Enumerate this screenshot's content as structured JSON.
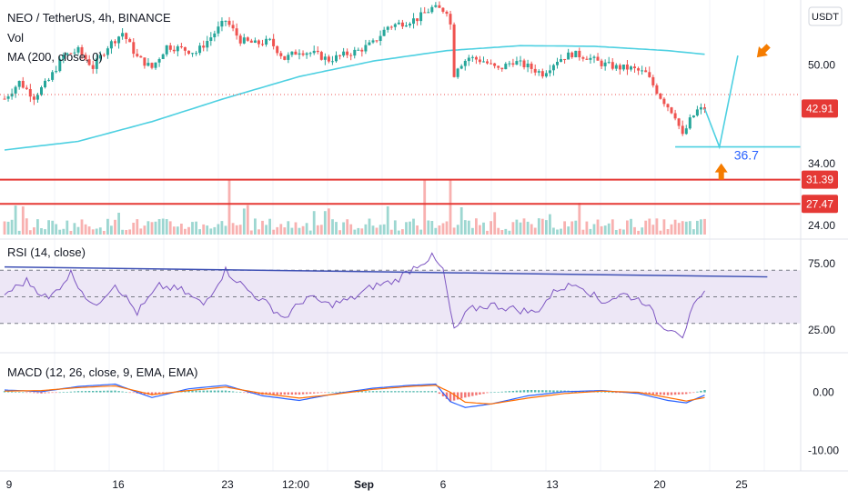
{
  "header": {
    "symbol_line": "NEO / TetherUS, 4h, BINANCE",
    "vol_label": "Vol",
    "ma_label": "MA (200, close, 0)",
    "currency": "USDT"
  },
  "colors": {
    "up": "#26a69a",
    "down": "#ef5350",
    "ma": "#4dd0e1",
    "level_line": "#e53935",
    "rsi_line": "#7e57c2",
    "rsi_band": "#ede7f6",
    "macd_line": "#2962ff",
    "signal_line": "#ff6d00",
    "annotation_arrow": "#f57c00",
    "annotation_text": "#2962ff",
    "grid": "#f0f3fa",
    "pane_border": "#e0e3eb"
  },
  "chart_data": [
    {
      "type": "candlestick",
      "title": "NEO / TetherUS, 4h, BINANCE",
      "y_axis_ticks": [
        50.0,
        42.91,
        34.0,
        31.39,
        27.47,
        24.0
      ],
      "ylim": [
        22.5,
        60.5
      ],
      "current_price_label": "42.91",
      "horizontal_levels": [
        "31.39",
        "27.47"
      ],
      "x_ticks": [
        "9",
        "16",
        "23",
        "12:00",
        "Sep",
        "6",
        "13",
        "20",
        "25"
      ],
      "price_path": [
        {
          "t": 0,
          "v": 44.5
        },
        {
          "t": 4,
          "v": 47.2
        },
        {
          "t": 8,
          "v": 44.8
        },
        {
          "t": 12,
          "v": 47.5
        },
        {
          "t": 16,
          "v": 51.5
        },
        {
          "t": 20,
          "v": 52.3
        },
        {
          "t": 24,
          "v": 49.6
        },
        {
          "t": 28,
          "v": 53.0
        },
        {
          "t": 32,
          "v": 55.2
        },
        {
          "t": 36,
          "v": 51.2
        },
        {
          "t": 40,
          "v": 49.5
        },
        {
          "t": 44,
          "v": 53.0
        },
        {
          "t": 48,
          "v": 52.6
        },
        {
          "t": 52,
          "v": 52.0
        },
        {
          "t": 56,
          "v": 54.5
        },
        {
          "t": 60,
          "v": 57.2
        },
        {
          "t": 64,
          "v": 54.0
        },
        {
          "t": 68,
          "v": 53.4
        },
        {
          "t": 72,
          "v": 53.8
        },
        {
          "t": 76,
          "v": 51.0
        },
        {
          "t": 80,
          "v": 52.3
        },
        {
          "t": 84,
          "v": 51.8
        },
        {
          "t": 88,
          "v": 50.8
        },
        {
          "t": 92,
          "v": 51.6
        },
        {
          "t": 96,
          "v": 52.3
        },
        {
          "t": 100,
          "v": 53.5
        },
        {
          "t": 104,
          "v": 56.2
        },
        {
          "t": 108,
          "v": 56.8
        },
        {
          "t": 112,
          "v": 57.5
        },
        {
          "t": 116,
          "v": 59.2
        },
        {
          "t": 120,
          "v": 58.8
        },
        {
          "t": 121,
          "v": 56.5
        },
        {
          "t": 122,
          "v": 48.5
        },
        {
          "t": 123,
          "v": 49.8
        },
        {
          "t": 126,
          "v": 51.2
        },
        {
          "t": 130,
          "v": 50.6
        },
        {
          "t": 134,
          "v": 49.2
        },
        {
          "t": 138,
          "v": 50.6
        },
        {
          "t": 142,
          "v": 49.7
        },
        {
          "t": 146,
          "v": 48.6
        },
        {
          "t": 150,
          "v": 50.8
        },
        {
          "t": 154,
          "v": 51.8
        },
        {
          "t": 158,
          "v": 51.3
        },
        {
          "t": 162,
          "v": 50.2
        },
        {
          "t": 166,
          "v": 49.6
        },
        {
          "t": 170,
          "v": 49.4
        },
        {
          "t": 174,
          "v": 48.6
        },
        {
          "t": 178,
          "v": 44.8
        },
        {
          "t": 182,
          "v": 41.8
        },
        {
          "t": 184,
          "v": 38.4
        },
        {
          "t": 186,
          "v": 41.0
        },
        {
          "t": 188,
          "v": 42.6
        },
        {
          "t": 190,
          "v": 42.91
        }
      ],
      "ma200_path": [
        {
          "t": 0,
          "v": 36.2
        },
        {
          "t": 20,
          "v": 37.6
        },
        {
          "t": 40,
          "v": 40.8
        },
        {
          "t": 60,
          "v": 44.6
        },
        {
          "t": 80,
          "v": 48.1
        },
        {
          "t": 100,
          "v": 50.6
        },
        {
          "t": 120,
          "v": 52.3
        },
        {
          "t": 140,
          "v": 53.1
        },
        {
          "t": 160,
          "v": 53.0
        },
        {
          "t": 180,
          "v": 52.3
        },
        {
          "t": 190,
          "v": 51.7
        }
      ],
      "volume_spikes": [
        {
          "t": 61,
          "label": "spike"
        },
        {
          "t": 114,
          "label": "spike"
        },
        {
          "t": 121,
          "label": "spike"
        }
      ],
      "projection": {
        "points": [
          {
            "t": 190,
            "v": 42.91
          },
          {
            "t": 194,
            "v": 36.7
          },
          {
            "t": 199,
            "v": 51.5
          }
        ],
        "support_level": 36.7,
        "support_label": "36.7"
      }
    },
    {
      "type": "line",
      "title": "RSI (14, close)",
      "y_axis_ticks": [
        75.0,
        25.0
      ],
      "ylim": [
        10,
        90
      ],
      "bands": [
        70,
        50,
        30
      ],
      "trendline": [
        {
          "t": 0,
          "v": 72.5
        },
        {
          "t": 207,
          "v": 65.0
        }
      ],
      "series": [
        {
          "name": "RSI",
          "points": [
            {
              "t": 0,
              "v": 52
            },
            {
              "t": 6,
              "v": 62
            },
            {
              "t": 12,
              "v": 48
            },
            {
              "t": 18,
              "v": 68
            },
            {
              "t": 24,
              "v": 42
            },
            {
              "t": 30,
              "v": 60
            },
            {
              "t": 36,
              "v": 38
            },
            {
              "t": 42,
              "v": 58
            },
            {
              "t": 48,
              "v": 55
            },
            {
              "t": 54,
              "v": 44
            },
            {
              "t": 60,
              "v": 70
            },
            {
              "t": 66,
              "v": 55
            },
            {
              "t": 72,
              "v": 43
            },
            {
              "t": 76,
              "v": 34
            },
            {
              "t": 82,
              "v": 50
            },
            {
              "t": 88,
              "v": 44
            },
            {
              "t": 94,
              "v": 48
            },
            {
              "t": 100,
              "v": 58
            },
            {
              "t": 106,
              "v": 62
            },
            {
              "t": 112,
              "v": 74
            },
            {
              "t": 116,
              "v": 80
            },
            {
              "t": 119,
              "v": 70
            },
            {
              "t": 122,
              "v": 24
            },
            {
              "t": 126,
              "v": 40
            },
            {
              "t": 132,
              "v": 44
            },
            {
              "t": 138,
              "v": 41
            },
            {
              "t": 144,
              "v": 38
            },
            {
              "t": 150,
              "v": 56
            },
            {
              "t": 156,
              "v": 60
            },
            {
              "t": 162,
              "v": 46
            },
            {
              "t": 168,
              "v": 52
            },
            {
              "t": 174,
              "v": 46
            },
            {
              "t": 178,
              "v": 28
            },
            {
              "t": 182,
              "v": 26
            },
            {
              "t": 184,
              "v": 21
            },
            {
              "t": 187,
              "v": 42
            },
            {
              "t": 190,
              "v": 52
            }
          ]
        }
      ]
    },
    {
      "type": "line",
      "title": "MACD (12, 26, close, 9, EMA, EMA)",
      "y_axis_ticks": [
        0.0,
        -10.0
      ],
      "ylim": [
        -13,
        6
      ],
      "series": [
        {
          "name": "MACD",
          "points": [
            {
              "t": 0,
              "v": 0.4
            },
            {
              "t": 10,
              "v": 0.1
            },
            {
              "t": 20,
              "v": 1.0
            },
            {
              "t": 30,
              "v": 1.4
            },
            {
              "t": 40,
              "v": -0.9
            },
            {
              "t": 50,
              "v": 0.6
            },
            {
              "t": 60,
              "v": 1.2
            },
            {
              "t": 70,
              "v": -0.6
            },
            {
              "t": 80,
              "v": -1.4
            },
            {
              "t": 90,
              "v": -0.2
            },
            {
              "t": 100,
              "v": 0.7
            },
            {
              "t": 110,
              "v": 1.2
            },
            {
              "t": 117,
              "v": 1.4
            },
            {
              "t": 121,
              "v": -1.6
            },
            {
              "t": 125,
              "v": -2.6
            },
            {
              "t": 132,
              "v": -2.0
            },
            {
              "t": 142,
              "v": -0.6
            },
            {
              "t": 152,
              "v": 0.1
            },
            {
              "t": 162,
              "v": 0.3
            },
            {
              "t": 172,
              "v": -0.2
            },
            {
              "t": 180,
              "v": -1.4
            },
            {
              "t": 185,
              "v": -1.8
            },
            {
              "t": 190,
              "v": -0.5
            }
          ]
        },
        {
          "name": "Signal",
          "points": [
            {
              "t": 0,
              "v": 0.2
            },
            {
              "t": 10,
              "v": 0.3
            },
            {
              "t": 20,
              "v": 0.8
            },
            {
              "t": 30,
              "v": 1.1
            },
            {
              "t": 40,
              "v": -0.4
            },
            {
              "t": 50,
              "v": 0.3
            },
            {
              "t": 60,
              "v": 0.9
            },
            {
              "t": 70,
              "v": -0.2
            },
            {
              "t": 80,
              "v": -1.0
            },
            {
              "t": 90,
              "v": -0.3
            },
            {
              "t": 100,
              "v": 0.5
            },
            {
              "t": 110,
              "v": 1.0
            },
            {
              "t": 117,
              "v": 1.2
            },
            {
              "t": 121,
              "v": 0.0
            },
            {
              "t": 125,
              "v": -1.7
            },
            {
              "t": 132,
              "v": -2.0
            },
            {
              "t": 142,
              "v": -1.0
            },
            {
              "t": 152,
              "v": -0.2
            },
            {
              "t": 162,
              "v": 0.2
            },
            {
              "t": 172,
              "v": 0.0
            },
            {
              "t": 180,
              "v": -0.9
            },
            {
              "t": 185,
              "v": -1.5
            },
            {
              "t": 190,
              "v": -0.9
            }
          ]
        }
      ]
    }
  ]
}
